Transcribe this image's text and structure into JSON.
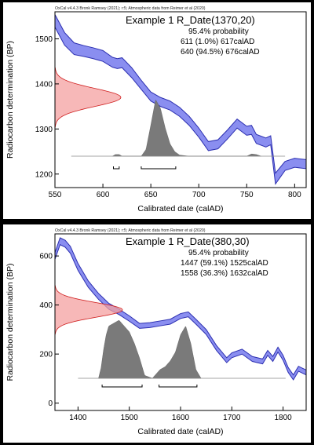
{
  "chart_data": [
    {
      "type": "line",
      "header": "OxCal v4.4.3 Bronk Ramsey (2021); r:5; Atmospheric data from Reimer et al (2020)",
      "title": "Example 1 R_Date(1370,20)",
      "probability_label": "95.4% probability",
      "ranges_text": [
        "611 (1.0%) 617calAD",
        "640 (94.5%) 676calAD"
      ],
      "ranges": [
        [
          611,
          617
        ],
        [
          640,
          676
        ]
      ],
      "xlabel": "Calibrated date (calAD)",
      "ylabel": "Radiocarbon determination (BP)",
      "xlim": [
        550,
        812
      ],
      "ylim": [
        1170,
        1560
      ],
      "xticks": [
        550,
        600,
        650,
        700,
        750,
        800
      ],
      "yticks": [
        1200,
        1300,
        1400,
        1500
      ],
      "date": {
        "mean": 1370,
        "sd": 20
      },
      "colors": {
        "curve_fill": "#8a8ef0",
        "curve_stroke": "#2c2fb0",
        "normal_fill": "#f4a0a0",
        "normal_stroke": "#d02020",
        "posterior_fill": "#7a7a7a"
      },
      "calibration_curve": {
        "x": [
          550,
          560,
          570,
          580,
          590,
          600,
          610,
          615,
          620,
          630,
          640,
          650,
          660,
          670,
          680,
          690,
          700,
          710,
          720,
          730,
          740,
          750,
          755,
          760,
          770,
          775,
          780,
          790,
          800,
          812
        ],
        "mid": [
          1540,
          1500,
          1478,
          1473,
          1468,
          1462,
          1448,
          1445,
          1447,
          1425,
          1398,
          1372,
          1360,
          1352,
          1338,
          1318,
          1292,
          1262,
          1266,
          1288,
          1312,
          1296,
          1298,
          1278,
          1270,
          1275,
          1190,
          1218,
          1225,
          1222
        ],
        "halfwidth": [
          14,
          14,
          13,
          12,
          12,
          12,
          11,
          11,
          11,
          11,
          10,
          10,
          10,
          10,
          10,
          10,
          10,
          10,
          10,
          10,
          10,
          10,
          10,
          10,
          10,
          10,
          12,
          10,
          10,
          10
        ]
      },
      "posterior": {
        "x": [
          610,
          613,
          617,
          620,
          640,
          645,
          650,
          655,
          660,
          665,
          670,
          675,
          680,
          690,
          700,
          750,
          755,
          760,
          765
        ],
        "density": [
          0,
          0.03,
          0.03,
          0,
          0,
          0.12,
          0.55,
          1.0,
          0.85,
          0.5,
          0.22,
          0.08,
          0.02,
          0,
          0,
          0,
          0.04,
          0.03,
          0
        ]
      }
    },
    {
      "type": "line",
      "header": "OxCal v4.4.3 Bronk Ramsey (2021); r:5; Atmospheric data from Reimer et al (2020)",
      "title": "Example 1 R_Date(380,30)",
      "probability_label": "95.4% probability",
      "ranges_text": [
        "1447 (59.1%) 1525calAD",
        "1558 (36.3%) 1632calAD"
      ],
      "ranges": [
        [
          1447,
          1525
        ],
        [
          1558,
          1632
        ]
      ],
      "xlabel": "Calibrated date (calAD)",
      "ylabel": "Radiocarbon determination (BP)",
      "xlim": [
        1355,
        1845
      ],
      "ylim": [
        -30,
        690
      ],
      "xticks": [
        1400,
        1500,
        1600,
        1700,
        1800
      ],
      "yticks": [
        0,
        200,
        400,
        600
      ],
      "date": {
        "mean": 380,
        "sd": 30
      },
      "colors": {
        "curve_fill": "#8a8ef0",
        "curve_stroke": "#2c2fb0",
        "normal_fill": "#f4a0a0",
        "normal_stroke": "#d02020",
        "posterior_fill": "#7a7a7a"
      },
      "calibration_curve": {
        "x": [
          1355,
          1365,
          1375,
          1385,
          1400,
          1420,
          1440,
          1460,
          1480,
          1500,
          1520,
          1540,
          1560,
          1580,
          1600,
          1615,
          1630,
          1650,
          1670,
          1690,
          1700,
          1720,
          1740,
          1760,
          1770,
          1780,
          1790,
          1800,
          1810,
          1820,
          1830,
          1845
        ],
        "mid": [
          600,
          660,
          650,
          625,
          555,
          485,
          435,
          395,
          372,
          345,
          315,
          318,
          325,
          332,
          355,
          362,
          332,
          290,
          225,
          175,
          195,
          210,
          180,
          170,
          205,
          180,
          218,
          185,
          135,
          105,
          140,
          125
        ],
        "halfwidth": [
          14,
          14,
          14,
          14,
          14,
          13,
          12,
          12,
          11,
          11,
          10,
          10,
          10,
          10,
          10,
          10,
          10,
          10,
          10,
          10,
          10,
          10,
          10,
          10,
          10,
          10,
          10,
          10,
          10,
          10,
          10,
          10
        ]
      },
      "posterior": {
        "x": [
          1440,
          1445,
          1450,
          1455,
          1460,
          1470,
          1480,
          1490,
          1500,
          1510,
          1520,
          1530,
          1545,
          1555,
          1560,
          1570,
          1580,
          1590,
          1600,
          1610,
          1620,
          1630,
          1640
        ],
        "density": [
          0,
          0.18,
          0.5,
          0.75,
          0.9,
          0.95,
          1.0,
          0.9,
          0.8,
          0.6,
          0.35,
          0.05,
          0,
          0.1,
          0.15,
          0.2,
          0.3,
          0.45,
          0.75,
          0.9,
          0.6,
          0.15,
          0
        ]
      }
    }
  ]
}
